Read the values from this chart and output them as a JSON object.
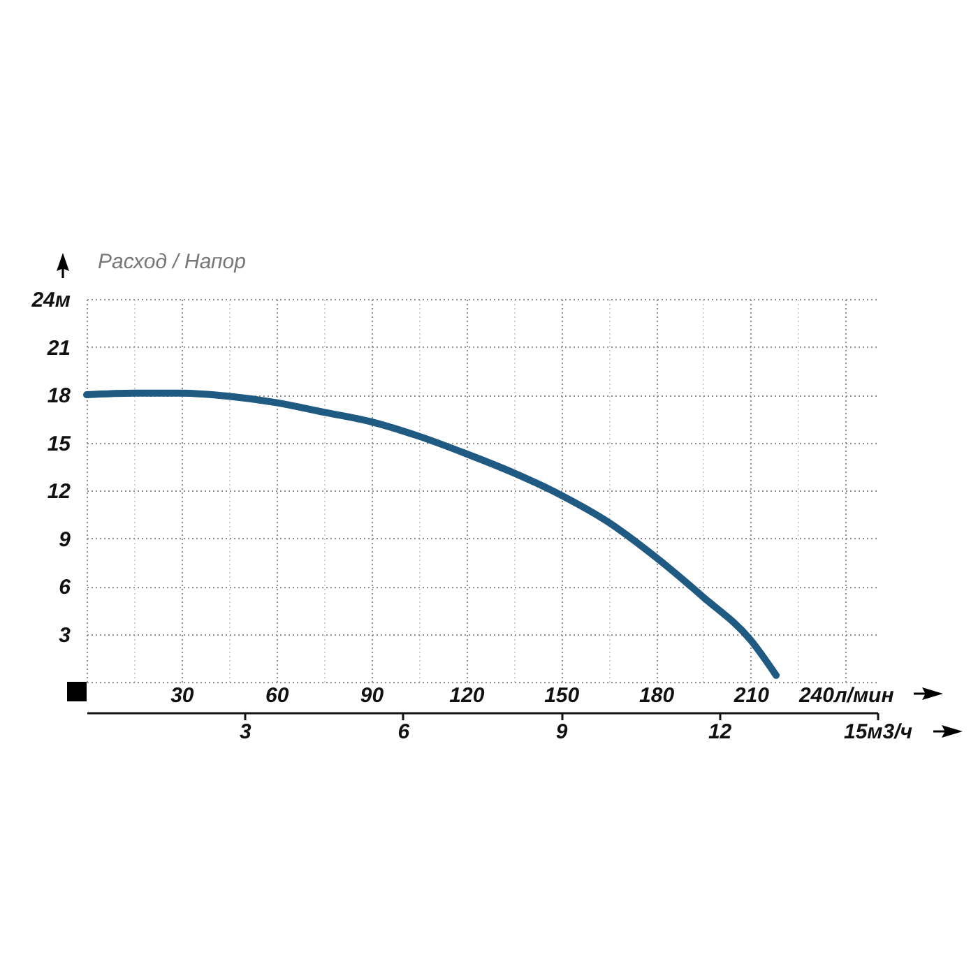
{
  "chart_data": {
    "type": "line",
    "title": "Расход / Напор",
    "x": [
      0,
      15,
      30,
      45,
      60,
      75,
      90,
      105,
      120,
      135,
      150,
      165,
      180,
      195,
      210,
      218
    ],
    "series": [
      {
        "color": "#1f5a82",
        "values": [
          18.0,
          18.1,
          18.1,
          17.9,
          17.5,
          16.9,
          16.3,
          15.4,
          14.3,
          13.1,
          11.7,
          10.0,
          7.8,
          5.3,
          2.6,
          0.4
        ]
      }
    ],
    "xlim": [
      0,
      250
    ],
    "xticks": [
      {
        "value": 0,
        "label": null
      },
      {
        "value": 15,
        "label": null
      },
      30,
      {
        "value": 45,
        "label": null
      },
      60,
      {
        "value": 75,
        "label": null
      },
      90,
      {
        "value": 105,
        "label": null
      },
      120,
      {
        "value": 135,
        "label": null
      },
      150,
      {
        "value": 165,
        "label": null
      },
      180,
      {
        "value": 195,
        "label": null
      },
      210,
      {
        "value": 225,
        "label": null
      },
      {
        "value": 240,
        "label": "240л/мин"
      }
    ],
    "ylim": [
      0,
      24
    ],
    "yticks": [
      {
        "value": 0,
        "label": null
      },
      3,
      6,
      9,
      12,
      15,
      18,
      21,
      {
        "value": 24,
        "label": "24м"
      }
    ],
    "x2lim": [
      0,
      15
    ],
    "x2ticks": [
      3,
      6,
      9,
      12,
      {
        "value": 15,
        "label": "15м3/ч"
      }
    ],
    "grid": true,
    "line_style": "solid"
  }
}
